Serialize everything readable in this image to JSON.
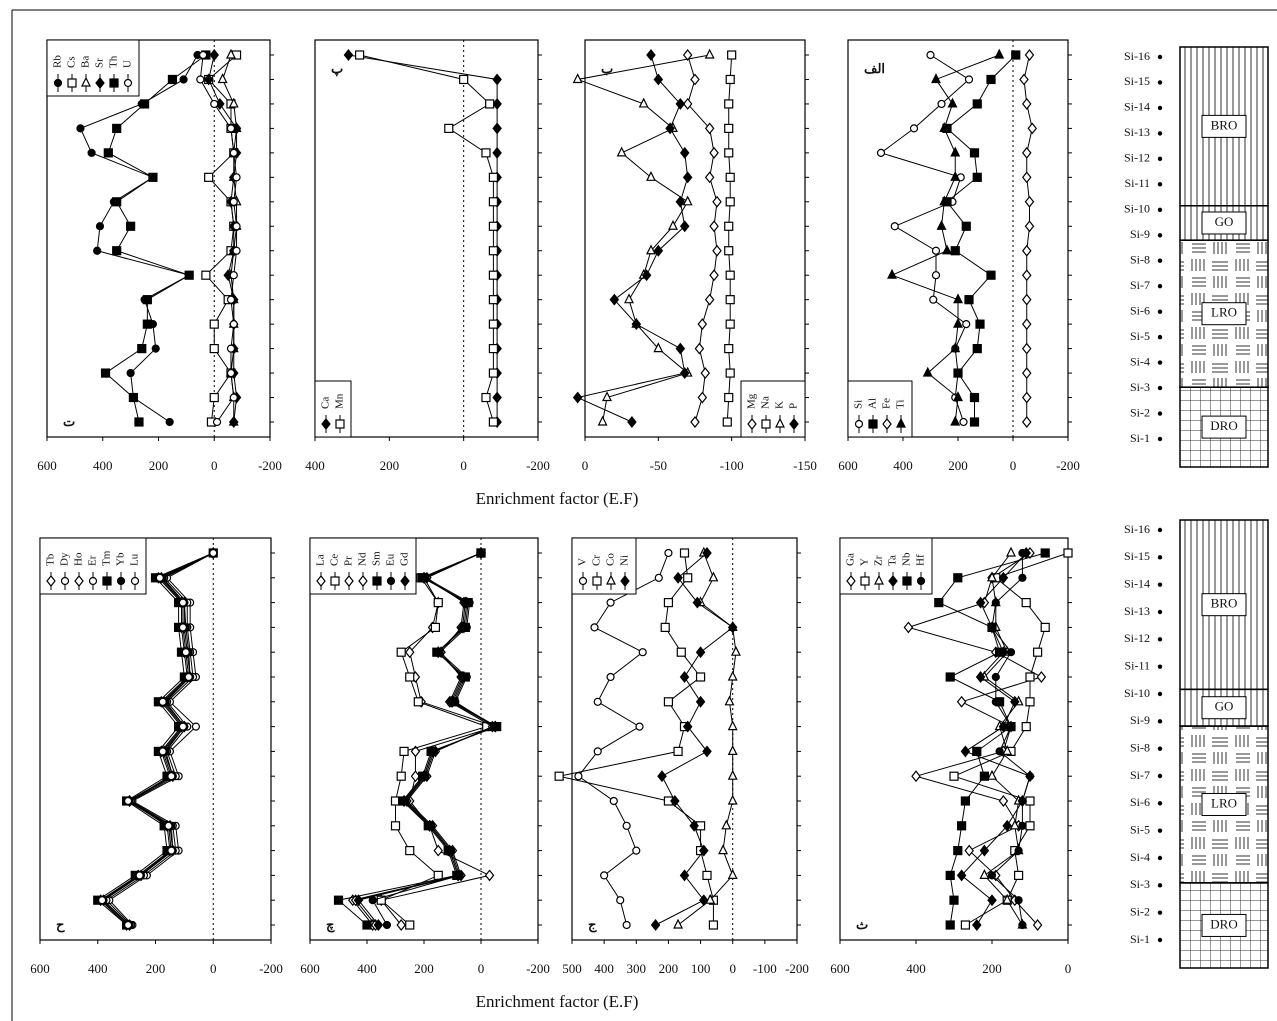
{
  "chart_data": [
    {
      "type": "line",
      "label": "ت",
      "label_corner": "bottom-left",
      "legend": "top-left",
      "zero_line": true,
      "xlim": [
        600,
        -200
      ],
      "xticks": [
        600,
        400,
        200,
        0,
        -200
      ],
      "series": [
        {
          "name": "Rb",
          "marker": "circle",
          "color": "#000",
          "values": [
            60,
            110,
            260,
            480,
            440,
            220,
            360,
            410,
            420,
            90,
            250,
            220,
            210,
            300,
            290,
            160
          ]
        },
        {
          "name": "Cs",
          "marker": "square-open",
          "color": "#000",
          "values": [
            -80,
            20,
            -60,
            -60,
            -70,
            20,
            -60,
            -70,
            -60,
            30,
            -50,
            0,
            0,
            -60,
            0,
            10
          ]
        },
        {
          "name": "Ba",
          "marker": "triangle-open",
          "color": "#000",
          "values": [
            -60,
            -30,
            -70,
            -80,
            -70,
            -70,
            -80,
            -80,
            -70,
            -60,
            -70,
            -70,
            -70,
            -60,
            -70,
            -70
          ]
        },
        {
          "name": "Sr",
          "marker": "diamond",
          "color": "#000",
          "values": [
            0,
            20,
            -20,
            -80,
            -80,
            -70,
            -60,
            -70,
            -70,
            -50,
            -70,
            -70,
            -70,
            -70,
            -80,
            -70
          ]
        },
        {
          "name": "Th",
          "marker": "square",
          "color": "#000",
          "values": [
            30,
            150,
            250,
            350,
            380,
            220,
            350,
            300,
            350,
            90,
            240,
            240,
            260,
            390,
            290,
            270
          ]
        },
        {
          "name": "U",
          "marker": "circle-open",
          "color": "#000",
          "values": [
            40,
            50,
            0,
            -60,
            -70,
            -80,
            -70,
            -80,
            -80,
            -70,
            -60,
            -70,
            -60,
            -60,
            -70,
            -10
          ]
        }
      ]
    },
    {
      "type": "line",
      "label": "پ",
      "label_corner": "top-left",
      "legend": "bottom-left",
      "zero_line": true,
      "xlim": [
        400,
        -200
      ],
      "xticks": [
        400,
        200,
        0,
        -200
      ],
      "series": [
        {
          "name": "Ca",
          "marker": "diamond",
          "color": "#000",
          "values": [
            310,
            -90,
            -90,
            -90,
            -90,
            -90,
            -90,
            -90,
            -90,
            -90,
            -90,
            -90,
            -90,
            -90,
            -90,
            -90
          ]
        },
        {
          "name": "Mn",
          "marker": "square-open",
          "color": "#000",
          "values": [
            280,
            0,
            -70,
            40,
            -60,
            -80,
            -80,
            -80,
            -80,
            -80,
            -80,
            -80,
            -80,
            -80,
            -60,
            -80
          ]
        }
      ]
    },
    {
      "type": "line",
      "label": "ب",
      "label_corner": "top-left",
      "legend": "bottom-right",
      "zero_line": false,
      "xlim": [
        0,
        -150
      ],
      "xticks": [
        0,
        -50,
        -100,
        -150
      ],
      "series": [
        {
          "name": "Mg",
          "marker": "diamond-open",
          "color": "#000",
          "values": [
            -70,
            -75,
            -70,
            -85,
            -88,
            -85,
            -90,
            -88,
            -90,
            -88,
            -85,
            -80,
            -78,
            -82,
            -80,
            -75
          ]
        },
        {
          "name": "Na",
          "marker": "square-open",
          "color": "#000",
          "values": [
            -100,
            -99,
            -98,
            -98,
            -98,
            -99,
            -99,
            -98,
            -98,
            -99,
            -99,
            -99,
            -98,
            -99,
            -98,
            -97
          ]
        },
        {
          "name": "K",
          "marker": "triangle-open",
          "color": "#000",
          "values": [
            -85,
            5,
            -40,
            -60,
            -25,
            -45,
            -70,
            -60,
            -45,
            -40,
            -30,
            -35,
            -50,
            -70,
            -15,
            -12
          ]
        },
        {
          "name": "P",
          "marker": "diamond",
          "color": "#000",
          "values": [
            -45,
            -50,
            -65,
            -58,
            -68,
            -70,
            -65,
            -68,
            -50,
            -42,
            -20,
            -35,
            -65,
            -68,
            5,
            -32
          ]
        }
      ]
    },
    {
      "type": "line",
      "label": "الف",
      "label_corner": "top-left",
      "legend": "bottom-left",
      "zero_line": true,
      "xlim": [
        600,
        -200
      ],
      "xticks": [
        600,
        400,
        200,
        0,
        -200
      ],
      "series": [
        {
          "name": "Si",
          "marker": "circle-open",
          "color": "#000",
          "values": [
            300,
            160,
            260,
            360,
            480,
            190,
            220,
            430,
            280,
            280,
            290,
            170,
            210,
            200,
            210,
            180
          ]
        },
        {
          "name": "Al",
          "marker": "square",
          "color": "#000",
          "values": [
            -10,
            80,
            130,
            240,
            140,
            130,
            240,
            170,
            210,
            80,
            160,
            120,
            130,
            200,
            140,
            140
          ]
        },
        {
          "name": "Fe",
          "marker": "diamond-open",
          "color": "#000",
          "values": [
            -60,
            -40,
            -50,
            -70,
            -50,
            -50,
            -60,
            -60,
            -50,
            -50,
            -50,
            -50,
            -50,
            -50,
            -50,
            -50
          ]
        },
        {
          "name": "Ti",
          "marker": "triangle",
          "color": "#000",
          "values": [
            50,
            280,
            220,
            250,
            210,
            210,
            250,
            260,
            240,
            440,
            200,
            200,
            210,
            310,
            200,
            210
          ]
        }
      ]
    },
    {
      "type": "line",
      "label": "ح",
      "label_corner": "bottom-left",
      "legend": "top-left",
      "zero_line": true,
      "xlim": [
        600,
        -200
      ],
      "xticks": [
        600,
        400,
        200,
        0,
        -200
      ],
      "series": [
        {
          "name": "Tb",
          "marker": "diamond-open",
          "color": "#000",
          "values": [
            0,
            180,
            100,
            100,
            90,
            80,
            170,
            100,
            170,
            140,
            290,
            150,
            140,
            250,
            380,
            290
          ]
        },
        {
          "name": "Dy",
          "marker": "circle-open",
          "color": "#000",
          "values": [
            0,
            160,
            80,
            80,
            70,
            60,
            150,
            60,
            150,
            120,
            280,
            130,
            120,
            230,
            360,
            280
          ]
        },
        {
          "name": "Ho",
          "marker": "diamond-open",
          "color": "#000",
          "values": [
            0,
            190,
            110,
            110,
            100,
            90,
            180,
            110,
            180,
            150,
            290,
            160,
            150,
            260,
            390,
            300
          ]
        },
        {
          "name": "Er",
          "marker": "circle-open",
          "color": "#000",
          "values": [
            0,
            170,
            90,
            90,
            80,
            70,
            160,
            90,
            160,
            130,
            285,
            140,
            130,
            240,
            370,
            285
          ]
        },
        {
          "name": "Tm",
          "marker": "square",
          "color": "#000",
          "values": [
            0,
            200,
            120,
            120,
            110,
            100,
            190,
            120,
            190,
            160,
            300,
            170,
            160,
            270,
            400,
            300
          ]
        },
        {
          "name": "Yb",
          "marker": "circle",
          "color": "#000",
          "values": [
            0,
            175,
            100,
            95,
            85,
            80,
            165,
            100,
            165,
            140,
            290,
            145,
            140,
            250,
            380,
            290
          ]
        },
        {
          "name": "Lu",
          "marker": "circle-open",
          "color": "#000",
          "values": [
            0,
            185,
            105,
            105,
            95,
            85,
            175,
            105,
            175,
            145,
            295,
            155,
            145,
            255,
            385,
            295
          ]
        }
      ]
    },
    {
      "type": "line",
      "label": "چ",
      "label_corner": "bottom-left",
      "legend": "top-left",
      "zero_line": true,
      "xlim": [
        600,
        -200
      ],
      "xticks": [
        600,
        400,
        200,
        0,
        -200
      ],
      "series": [
        {
          "name": "La",
          "marker": "diamond-open",
          "color": "#000",
          "values": [
            0,
            200,
            150,
            170,
            250,
            230,
            210,
            -50,
            230,
            230,
            250,
            180,
            150,
            -30,
            350,
            280
          ]
        },
        {
          "name": "Ce",
          "marker": "square-open",
          "color": "#000",
          "values": [
            0,
            210,
            150,
            160,
            280,
            250,
            220,
            -20,
            270,
            280,
            300,
            300,
            250,
            150,
            350,
            250
          ]
        },
        {
          "name": "Pr",
          "marker": "diamond-open",
          "color": "#000",
          "values": [
            0,
            200,
            50,
            60,
            150,
            60,
            100,
            -50,
            170,
            200,
            270,
            180,
            110,
            80,
            450,
            380
          ]
        },
        {
          "name": "Nd",
          "marker": "diamond-open",
          "color": "#000",
          "values": [
            0,
            190,
            60,
            70,
            140,
            70,
            110,
            -40,
            160,
            190,
            260,
            170,
            100,
            70,
            440,
            370
          ]
        },
        {
          "name": "Sm",
          "marker": "square",
          "color": "#000",
          "values": [
            0,
            205,
            45,
            55,
            155,
            55,
            95,
            -55,
            175,
            205,
            275,
            185,
            115,
            85,
            500,
            400
          ]
        },
        {
          "name": "Eu",
          "marker": "circle",
          "color": "#000",
          "values": [
            0,
            195,
            40,
            50,
            145,
            50,
            90,
            -45,
            165,
            195,
            265,
            175,
            105,
            75,
            380,
            330
          ]
        },
        {
          "name": "Gd",
          "marker": "diamond",
          "color": "#000",
          "values": [
            0,
            200,
            55,
            65,
            150,
            65,
            105,
            -50,
            170,
            200,
            270,
            180,
            110,
            80,
            430,
            360
          ]
        }
      ]
    },
    {
      "type": "line",
      "label": "ج",
      "label_corner": "bottom-left",
      "legend": "top-left",
      "zero_line": true,
      "xlim": [
        500,
        -200
      ],
      "xticks": [
        500,
        400,
        300,
        200,
        100,
        0,
        -100,
        -200
      ],
      "series": [
        {
          "name": "V",
          "marker": "circle-open",
          "color": "#000",
          "values": [
            200,
            230,
            380,
            430,
            280,
            380,
            420,
            290,
            420,
            480,
            370,
            330,
            300,
            400,
            350,
            330
          ]
        },
        {
          "name": "Cr",
          "marker": "square-open",
          "color": "#000",
          "values": [
            150,
            140,
            200,
            210,
            160,
            100,
            200,
            150,
            170,
            540,
            200,
            100,
            100,
            80,
            60,
            60
          ]
        },
        {
          "name": "Co",
          "marker": "triangle-open",
          "color": "#000",
          "values": [
            90,
            60,
            100,
            0,
            -10,
            0,
            10,
            0,
            0,
            0,
            0,
            20,
            30,
            0,
            70,
            170
          ]
        },
        {
          "name": "Ni",
          "marker": "diamond",
          "color": "#000",
          "values": [
            80,
            170,
            110,
            0,
            100,
            150,
            100,
            140,
            80,
            220,
            180,
            120,
            90,
            150,
            90,
            240
          ]
        }
      ]
    },
    {
      "type": "line",
      "label": "ث",
      "label_corner": "bottom-left",
      "legend": "top-left",
      "zero_line": false,
      "xlim": [
        600,
        0
      ],
      "xticks": [
        600,
        400,
        200,
        0
      ],
      "series": [
        {
          "name": "Ga",
          "marker": "diamond-open",
          "color": "#000",
          "values": [
            100,
            200,
            220,
            420,
            190,
            70,
            280,
            150,
            170,
            400,
            170,
            130,
            260,
            190,
            140,
            80
          ]
        },
        {
          "name": "Y",
          "marker": "square-open",
          "color": "#000",
          "values": [
            0,
            190,
            110,
            60,
            80,
            100,
            100,
            110,
            150,
            300,
            100,
            100,
            140,
            130,
            160,
            270
          ]
        },
        {
          "name": "Zr",
          "marker": "triangle-open",
          "color": "#000",
          "values": [
            150,
            200,
            190,
            190,
            160,
            220,
            130,
            180,
            160,
            200,
            130,
            140,
            130,
            220,
            160,
            120
          ]
        },
        {
          "name": "Ta",
          "marker": "diamond",
          "color": "#000",
          "values": [
            110,
            170,
            230,
            200,
            170,
            230,
            140,
            170,
            270,
            100,
            120,
            160,
            220,
            280,
            200,
            240
          ]
        },
        {
          "name": "Nb",
          "marker": "square",
          "color": "#000",
          "values": [
            60,
            290,
            340,
            200,
            180,
            310,
            180,
            150,
            240,
            220,
            270,
            280,
            290,
            310,
            300,
            310
          ]
        },
        {
          "name": "Hf",
          "marker": "circle",
          "color": "#000",
          "values": [
            120,
            120,
            190,
            200,
            150,
            190,
            190,
            150,
            180,
            100,
            120,
            120,
            130,
            200,
            130,
            120
          ]
        }
      ]
    }
  ],
  "xlabels": [
    "Enrichment factor (E.F)",
    "Enrichment factor (E.F)"
  ],
  "column": {
    "categories": [
      "Si-16",
      "Si-15",
      "Si-14",
      "Si-13",
      "Si-12",
      "Si-11",
      "Si-10",
      "Si-9",
      "Si-8",
      "Si-7",
      "Si-6",
      "Si-5",
      "Si-4",
      "Si-3",
      "Si-2",
      "Si-1"
    ],
    "units": [
      "BRO",
      "GO",
      "LRO",
      "DRO"
    ]
  }
}
